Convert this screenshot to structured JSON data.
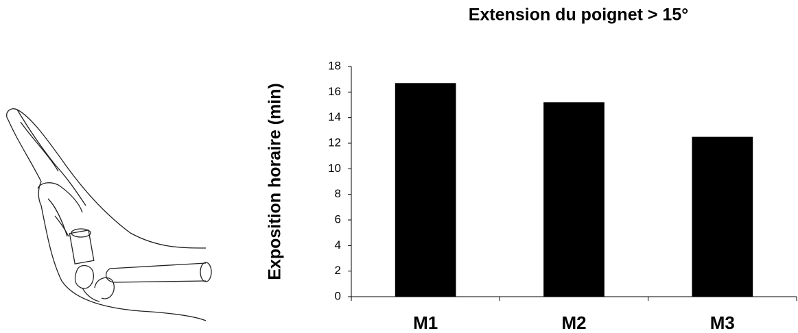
{
  "chart_data": {
    "type": "bar",
    "title": "Extension du poignet > 15°",
    "y_label": "Exposition horaire (min)",
    "categories": [
      "M1",
      "M2",
      "M3"
    ],
    "values": [
      16.7,
      15.2,
      12.5
    ],
    "color": "#000000",
    "ylim": [
      0,
      18
    ],
    "yticks": [
      0,
      2,
      4,
      6,
      8,
      10,
      12,
      14,
      16,
      18
    ],
    "grid": false
  }
}
